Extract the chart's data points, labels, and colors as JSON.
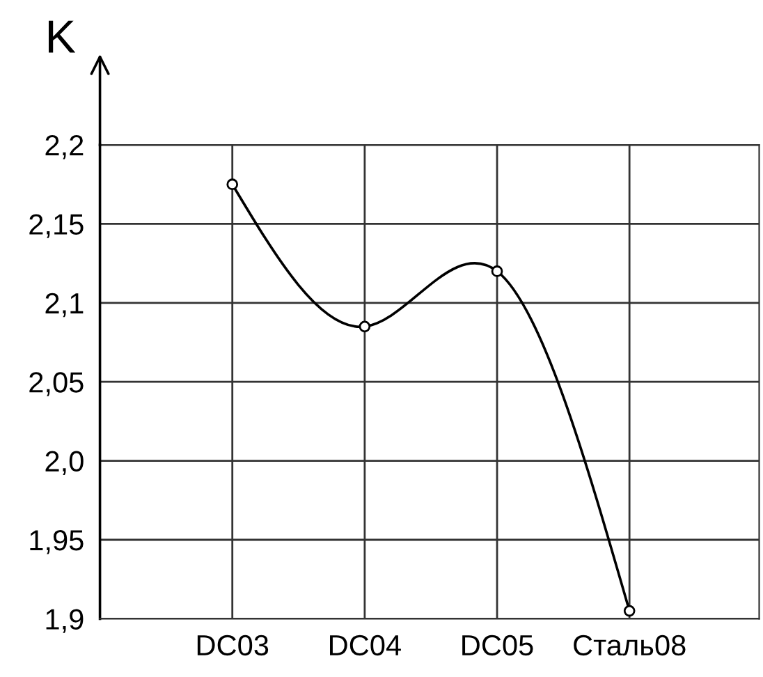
{
  "chart_data": {
    "type": "line",
    "ylabel": "K",
    "categories": [
      "DC03",
      "DC04",
      "DC05",
      "Сталь08"
    ],
    "series": [
      {
        "color": "#000000",
        "values": [
          2.175,
          2.085,
          2.12,
          1.905
        ]
      }
    ],
    "ylim": [
      1.9,
      2.2
    ],
    "yticks": [
      {
        "value": 1.9,
        "label": "1,9"
      },
      {
        "value": 1.95,
        "label": "1,95"
      },
      {
        "value": 2.0,
        "label": "2,0"
      },
      {
        "value": 2.05,
        "label": "2,05"
      },
      {
        "value": 2.1,
        "label": "2,1"
      },
      {
        "value": 2.15,
        "label": "2,15"
      },
      {
        "value": 2.2,
        "label": "2,2"
      }
    ],
    "grid": true,
    "marker": "circle",
    "line_style": "solid",
    "legend": false
  }
}
